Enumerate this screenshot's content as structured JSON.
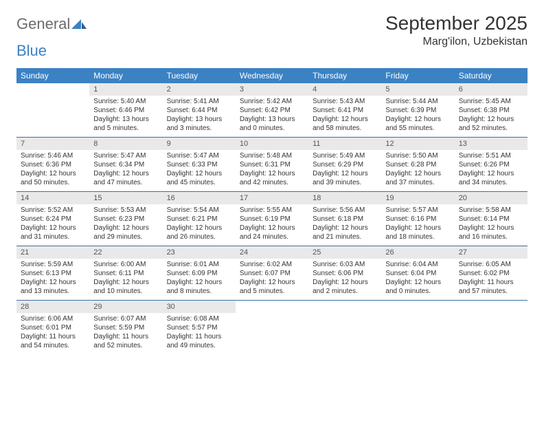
{
  "logo": {
    "general": "General",
    "blue": "Blue"
  },
  "title": "September 2025",
  "location": "Marg'ilon, Uzbekistan",
  "colors": {
    "header_bg": "#3b82c4",
    "header_text": "#ffffff",
    "daynum_bg": "#e9e9e9",
    "daynum_text": "#555555",
    "body_text": "#333333",
    "rule": "#3b6fa0"
  },
  "day_headers": [
    "Sunday",
    "Monday",
    "Tuesday",
    "Wednesday",
    "Thursday",
    "Friday",
    "Saturday"
  ],
  "weeks": [
    [
      null,
      {
        "n": "1",
        "sr": "Sunrise: 5:40 AM",
        "ss": "Sunset: 6:46 PM",
        "d1": "Daylight: 13 hours",
        "d2": "and 5 minutes."
      },
      {
        "n": "2",
        "sr": "Sunrise: 5:41 AM",
        "ss": "Sunset: 6:44 PM",
        "d1": "Daylight: 13 hours",
        "d2": "and 3 minutes."
      },
      {
        "n": "3",
        "sr": "Sunrise: 5:42 AM",
        "ss": "Sunset: 6:42 PM",
        "d1": "Daylight: 13 hours",
        "d2": "and 0 minutes."
      },
      {
        "n": "4",
        "sr": "Sunrise: 5:43 AM",
        "ss": "Sunset: 6:41 PM",
        "d1": "Daylight: 12 hours",
        "d2": "and 58 minutes."
      },
      {
        "n": "5",
        "sr": "Sunrise: 5:44 AM",
        "ss": "Sunset: 6:39 PM",
        "d1": "Daylight: 12 hours",
        "d2": "and 55 minutes."
      },
      {
        "n": "6",
        "sr": "Sunrise: 5:45 AM",
        "ss": "Sunset: 6:38 PM",
        "d1": "Daylight: 12 hours",
        "d2": "and 52 minutes."
      }
    ],
    [
      {
        "n": "7",
        "sr": "Sunrise: 5:46 AM",
        "ss": "Sunset: 6:36 PM",
        "d1": "Daylight: 12 hours",
        "d2": "and 50 minutes."
      },
      {
        "n": "8",
        "sr": "Sunrise: 5:47 AM",
        "ss": "Sunset: 6:34 PM",
        "d1": "Daylight: 12 hours",
        "d2": "and 47 minutes."
      },
      {
        "n": "9",
        "sr": "Sunrise: 5:47 AM",
        "ss": "Sunset: 6:33 PM",
        "d1": "Daylight: 12 hours",
        "d2": "and 45 minutes."
      },
      {
        "n": "10",
        "sr": "Sunrise: 5:48 AM",
        "ss": "Sunset: 6:31 PM",
        "d1": "Daylight: 12 hours",
        "d2": "and 42 minutes."
      },
      {
        "n": "11",
        "sr": "Sunrise: 5:49 AM",
        "ss": "Sunset: 6:29 PM",
        "d1": "Daylight: 12 hours",
        "d2": "and 39 minutes."
      },
      {
        "n": "12",
        "sr": "Sunrise: 5:50 AM",
        "ss": "Sunset: 6:28 PM",
        "d1": "Daylight: 12 hours",
        "d2": "and 37 minutes."
      },
      {
        "n": "13",
        "sr": "Sunrise: 5:51 AM",
        "ss": "Sunset: 6:26 PM",
        "d1": "Daylight: 12 hours",
        "d2": "and 34 minutes."
      }
    ],
    [
      {
        "n": "14",
        "sr": "Sunrise: 5:52 AM",
        "ss": "Sunset: 6:24 PM",
        "d1": "Daylight: 12 hours",
        "d2": "and 31 minutes."
      },
      {
        "n": "15",
        "sr": "Sunrise: 5:53 AM",
        "ss": "Sunset: 6:23 PM",
        "d1": "Daylight: 12 hours",
        "d2": "and 29 minutes."
      },
      {
        "n": "16",
        "sr": "Sunrise: 5:54 AM",
        "ss": "Sunset: 6:21 PM",
        "d1": "Daylight: 12 hours",
        "d2": "and 26 minutes."
      },
      {
        "n": "17",
        "sr": "Sunrise: 5:55 AM",
        "ss": "Sunset: 6:19 PM",
        "d1": "Daylight: 12 hours",
        "d2": "and 24 minutes."
      },
      {
        "n": "18",
        "sr": "Sunrise: 5:56 AM",
        "ss": "Sunset: 6:18 PM",
        "d1": "Daylight: 12 hours",
        "d2": "and 21 minutes."
      },
      {
        "n": "19",
        "sr": "Sunrise: 5:57 AM",
        "ss": "Sunset: 6:16 PM",
        "d1": "Daylight: 12 hours",
        "d2": "and 18 minutes."
      },
      {
        "n": "20",
        "sr": "Sunrise: 5:58 AM",
        "ss": "Sunset: 6:14 PM",
        "d1": "Daylight: 12 hours",
        "d2": "and 16 minutes."
      }
    ],
    [
      {
        "n": "21",
        "sr": "Sunrise: 5:59 AM",
        "ss": "Sunset: 6:13 PM",
        "d1": "Daylight: 12 hours",
        "d2": "and 13 minutes."
      },
      {
        "n": "22",
        "sr": "Sunrise: 6:00 AM",
        "ss": "Sunset: 6:11 PM",
        "d1": "Daylight: 12 hours",
        "d2": "and 10 minutes."
      },
      {
        "n": "23",
        "sr": "Sunrise: 6:01 AM",
        "ss": "Sunset: 6:09 PM",
        "d1": "Daylight: 12 hours",
        "d2": "and 8 minutes."
      },
      {
        "n": "24",
        "sr": "Sunrise: 6:02 AM",
        "ss": "Sunset: 6:07 PM",
        "d1": "Daylight: 12 hours",
        "d2": "and 5 minutes."
      },
      {
        "n": "25",
        "sr": "Sunrise: 6:03 AM",
        "ss": "Sunset: 6:06 PM",
        "d1": "Daylight: 12 hours",
        "d2": "and 2 minutes."
      },
      {
        "n": "26",
        "sr": "Sunrise: 6:04 AM",
        "ss": "Sunset: 6:04 PM",
        "d1": "Daylight: 12 hours",
        "d2": "and 0 minutes."
      },
      {
        "n": "27",
        "sr": "Sunrise: 6:05 AM",
        "ss": "Sunset: 6:02 PM",
        "d1": "Daylight: 11 hours",
        "d2": "and 57 minutes."
      }
    ],
    [
      {
        "n": "28",
        "sr": "Sunrise: 6:06 AM",
        "ss": "Sunset: 6:01 PM",
        "d1": "Daylight: 11 hours",
        "d2": "and 54 minutes."
      },
      {
        "n": "29",
        "sr": "Sunrise: 6:07 AM",
        "ss": "Sunset: 5:59 PM",
        "d1": "Daylight: 11 hours",
        "d2": "and 52 minutes."
      },
      {
        "n": "30",
        "sr": "Sunrise: 6:08 AM",
        "ss": "Sunset: 5:57 PM",
        "d1": "Daylight: 11 hours",
        "d2": "and 49 minutes."
      },
      null,
      null,
      null,
      null
    ]
  ]
}
